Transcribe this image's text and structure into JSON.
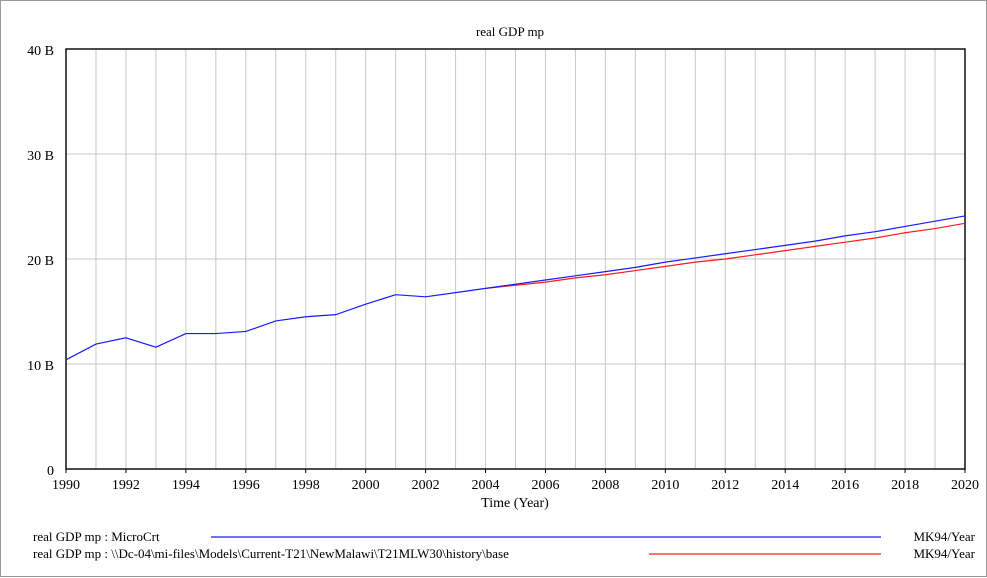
{
  "chart_data": {
    "type": "line",
    "title": "real GDP mp",
    "xlabel": "Time (Year)",
    "ylabel": "",
    "xlim": [
      1990,
      2020
    ],
    "ylim": [
      0,
      40
    ],
    "x_ticks": [
      "1990",
      "1992",
      "1994",
      "1996",
      "1998",
      "2000",
      "2002",
      "2004",
      "2006",
      "2008",
      "2010",
      "2012",
      "2014",
      "2016",
      "2018",
      "2020"
    ],
    "y_ticks": [
      "0",
      "10 B",
      "20 B",
      "30 B",
      "40 B"
    ],
    "y_tick_values": [
      0,
      10,
      20,
      30,
      40
    ],
    "grid": true,
    "legend_position": "bottom",
    "series": [
      {
        "name": "real GDP mp : MicroCrt",
        "unit": "MK94/Year",
        "color": "#1a1aff",
        "x": [
          1990,
          1991,
          1992,
          1993,
          1994,
          1995,
          1996,
          1997,
          1998,
          1999,
          2000,
          2001,
          2002,
          2003,
          2004,
          2005,
          2006,
          2007,
          2008,
          2009,
          2010,
          2011,
          2012,
          2013,
          2014,
          2015,
          2016,
          2017,
          2018,
          2019,
          2020
        ],
        "values": [
          10.4,
          11.9,
          12.5,
          11.6,
          12.9,
          12.9,
          13.1,
          14.1,
          14.5,
          14.7,
          15.7,
          16.6,
          16.4,
          16.8,
          17.2,
          17.6,
          18.0,
          18.4,
          18.8,
          19.2,
          19.7,
          20.1,
          20.5,
          20.9,
          21.3,
          21.7,
          22.2,
          22.6,
          23.1,
          23.6,
          24.1
        ]
      },
      {
        "name": "real GDP mp : \\\\Dc-04\\mi-files\\Models\\Current-T21\\NewMalawi\\T21MLW30\\history\\base",
        "unit": "MK94/Year",
        "color": "#ff1a1a",
        "x": [
          2004,
          2005,
          2006,
          2007,
          2008,
          2009,
          2010,
          2011,
          2012,
          2013,
          2014,
          2015,
          2016,
          2017,
          2018,
          2019,
          2020
        ],
        "values": [
          17.2,
          17.5,
          17.8,
          18.2,
          18.5,
          18.9,
          19.3,
          19.7,
          20.0,
          20.4,
          20.8,
          21.2,
          21.6,
          22.0,
          22.5,
          22.9,
          23.4
        ]
      }
    ]
  }
}
